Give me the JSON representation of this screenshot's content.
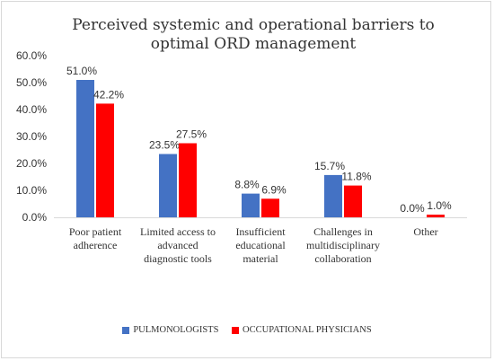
{
  "chart_data": {
    "type": "bar",
    "title": "Perceived systemic and operational barriers to optimal ORD management",
    "categories": [
      [
        "Poor patient",
        "adherence"
      ],
      [
        "Limited access to",
        "advanced",
        "diagnostic tools"
      ],
      [
        "Insufficient",
        "educational",
        "material"
      ],
      [
        "Challenges in",
        "multidisciplinary",
        "collaboration"
      ],
      [
        "Other"
      ]
    ],
    "series": [
      {
        "name": "PULMONOLOGISTS",
        "color": "#4472C4",
        "values": [
          51.0,
          23.5,
          8.8,
          15.7,
          0.0
        ],
        "labels": [
          "51.0%",
          "23.5%",
          "8.8%",
          "15.7%",
          "0.0%"
        ]
      },
      {
        "name": "OCCUPATIONAL PHYSICIANS",
        "color": "#FF0000",
        "values": [
          42.2,
          27.5,
          6.9,
          11.8,
          1.0
        ],
        "labels": [
          "42.2%",
          "27.5%",
          "6.9%",
          "11.8%",
          "1.0%"
        ]
      }
    ],
    "yticks": [
      "0.0%",
      "10.0%",
      "20.0%",
      "30.0%",
      "40.0%",
      "50.0%",
      "60.0%"
    ],
    "ylim": [
      0,
      60
    ],
    "xlabel": "",
    "ylabel": "",
    "grid": false,
    "legend_position": "bottom"
  }
}
